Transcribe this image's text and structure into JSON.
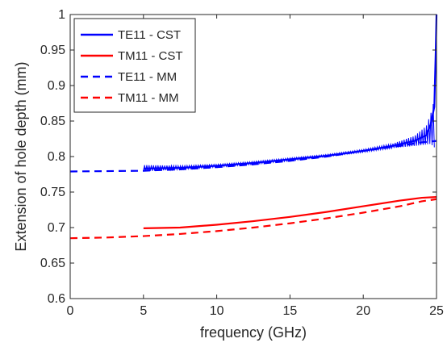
{
  "chart_data": {
    "type": "line",
    "xlabel": "frequency (GHz)",
    "ylabel": "Extension of hole depth (mm)",
    "xlim": [
      0,
      25
    ],
    "ylim": [
      0.6,
      1.0
    ],
    "x_ticks": [
      "0",
      "5",
      "10",
      "15",
      "20",
      "25"
    ],
    "y_ticks": [
      "0.6",
      "0.65",
      "0.7",
      "0.75",
      "0.8",
      "0.85",
      "0.9",
      "0.95",
      "1"
    ],
    "grid": false,
    "legend_position": "top-left",
    "series": [
      {
        "name": "TE11 - CST",
        "color": "#0000ff",
        "dash": "solid",
        "x": [
          5.0,
          7.5,
          10.0,
          12.5,
          15.0,
          17.5,
          20.0,
          22.0,
          23.5,
          24.3,
          24.6,
          24.85,
          24.95,
          25.0
        ],
        "y": [
          0.783,
          0.784,
          0.787,
          0.791,
          0.796,
          0.801,
          0.808,
          0.815,
          0.822,
          0.83,
          0.845,
          0.87,
          0.95,
          1.0
        ],
        "oscillation_band": {
          "x": [
            5.0,
            7.5,
            10.0,
            12.5,
            15.0,
            17.5,
            20.0,
            22.0,
            23.5,
            24.3,
            24.6,
            24.85
          ],
          "y_lower": [
            0.779,
            0.782,
            0.785,
            0.789,
            0.794,
            0.8,
            0.806,
            0.812,
            0.815,
            0.817,
            0.818,
            0.813
          ],
          "y_upper": [
            0.788,
            0.787,
            0.789,
            0.793,
            0.798,
            0.803,
            0.81,
            0.818,
            0.829,
            0.843,
            0.86,
            0.88
          ]
        }
      },
      {
        "name": "TM11 - CST",
        "color": "#ff0000",
        "dash": "solid",
        "x": [
          5.0,
          7.5,
          10.0,
          12.5,
          15.0,
          17.5,
          20.0,
          22.5,
          24.0,
          25.0
        ],
        "y": [
          0.699,
          0.7,
          0.704,
          0.709,
          0.715,
          0.722,
          0.73,
          0.738,
          0.742,
          0.743
        ]
      },
      {
        "name": "TE11 - MM",
        "color": "#0000ff",
        "dash": "dashed",
        "x": [
          0.0,
          5.0,
          7.5,
          10.0,
          12.5,
          15.0,
          17.5,
          20.0,
          22.5,
          24.0,
          25.0
        ],
        "y": [
          0.779,
          0.78,
          0.782,
          0.785,
          0.789,
          0.794,
          0.8,
          0.808,
          0.815,
          0.82,
          0.822
        ]
      },
      {
        "name": "TM11 - MM",
        "color": "#ff0000",
        "dash": "dashed",
        "x": [
          0.0,
          2.5,
          5.0,
          7.5,
          10.0,
          12.5,
          15.0,
          17.5,
          20.0,
          22.5,
          24.0,
          25.0
        ],
        "y": [
          0.685,
          0.686,
          0.688,
          0.691,
          0.695,
          0.7,
          0.706,
          0.713,
          0.721,
          0.73,
          0.737,
          0.74
        ]
      }
    ]
  }
}
